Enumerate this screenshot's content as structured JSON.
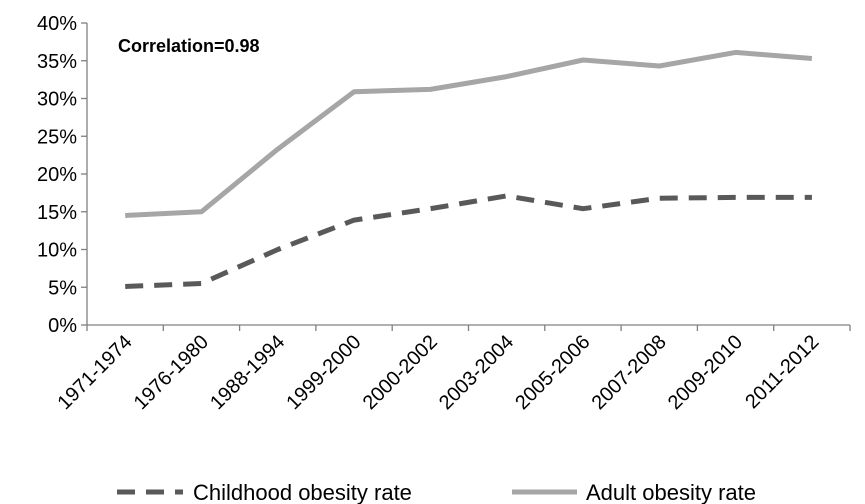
{
  "chart_data": {
    "type": "line",
    "categories": [
      "1971-1974",
      "1976-1980",
      "1988-1994",
      "1999-2000",
      "2000-2002",
      "2003-2004",
      "2005-2006",
      "2007-2008",
      "2009-2010",
      "2011-2012"
    ],
    "series": [
      {
        "name": "Childhood obesity rate",
        "values": [
          5.1,
          5.5,
          10.0,
          13.9,
          15.4,
          17.1,
          15.4,
          16.8,
          16.9,
          16.9
        ],
        "color": "#595959",
        "style": "dashed"
      },
      {
        "name": "Adult obesity rate",
        "values": [
          14.5,
          15.0,
          23.3,
          30.9,
          31.2,
          32.9,
          35.1,
          34.3,
          36.1,
          35.3
        ],
        "color": "#a6a6a6",
        "style": "solid"
      }
    ],
    "y_ticks": [
      "0%",
      "5%",
      "10%",
      "15%",
      "20%",
      "25%",
      "30%",
      "35%",
      "40%"
    ],
    "ylim": [
      0,
      40
    ],
    "y_unit": "%",
    "annotation": "Correlation=0.98",
    "legend_position": "bottom",
    "grid": false
  }
}
